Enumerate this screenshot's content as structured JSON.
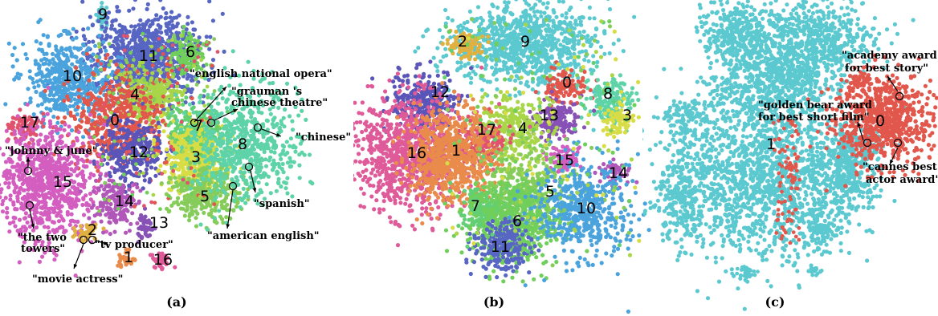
{
  "chart_data": [
    {
      "type": "scatter",
      "panel": "(a)",
      "clusters": [
        {
          "label": "0",
          "color": "#e2574c"
        },
        {
          "label": "1",
          "color": "#e98b4a"
        },
        {
          "label": "2",
          "color": "#e0b040"
        },
        {
          "label": "3",
          "color": "#d8dc45"
        },
        {
          "label": "4",
          "color": "#a8d648"
        },
        {
          "label": "5",
          "color": "#86cc5a"
        },
        {
          "label": "6",
          "color": "#6fcf5a"
        },
        {
          "label": "7",
          "color": "#62cf75"
        },
        {
          "label": "8",
          "color": "#5ed3a8"
        },
        {
          "label": "9",
          "color": "#5bc9cf"
        },
        {
          "label": "10",
          "color": "#4aa3dc"
        },
        {
          "label": "11",
          "color": "#5866c3"
        },
        {
          "label": "12",
          "color": "#5a55b8"
        },
        {
          "label": "13",
          "color": "#8751b6"
        },
        {
          "label": "14",
          "color": "#b057b9"
        },
        {
          "label": "15",
          "color": "#d35ec0"
        },
        {
          "label": "16",
          "color": "#df5a98"
        },
        {
          "label": "17",
          "color": "#e0536d"
        }
      ],
      "annotations": [
        "\"english national opera\"",
        "\"grauman 's chinese theatre\"",
        "\"chinese\"",
        "\"johnny & june\"",
        "\"spanish\"",
        "\"the two towers\"",
        "\"american english\"",
        "\"tv producer\"",
        "\"movie actress\""
      ]
    },
    {
      "type": "scatter",
      "panel": "(b)",
      "clusters": [
        {
          "label": "0",
          "color": "#e2574c"
        },
        {
          "label": "1",
          "color": "#e98b4a"
        },
        {
          "label": "2",
          "color": "#e0b040"
        },
        {
          "label": "3",
          "color": "#d8dc45"
        },
        {
          "label": "4",
          "color": "#a8d648"
        },
        {
          "label": "5",
          "color": "#86cc5a"
        },
        {
          "label": "6",
          "color": "#6fcf5a"
        },
        {
          "label": "7",
          "color": "#62cf75"
        },
        {
          "label": "8",
          "color": "#5ed3a8"
        },
        {
          "label": "9",
          "color": "#5bc9cf"
        },
        {
          "label": "10",
          "color": "#4aa3dc"
        },
        {
          "label": "11",
          "color": "#5866c3"
        },
        {
          "label": "12",
          "color": "#5a55b8"
        },
        {
          "label": "13",
          "color": "#8751b6"
        },
        {
          "label": "14",
          "color": "#b057b9"
        },
        {
          "label": "15",
          "color": "#d35ec0"
        },
        {
          "label": "16",
          "color": "#df5a98"
        },
        {
          "label": "17",
          "color": "#e0536d"
        }
      ],
      "annotations": []
    },
    {
      "type": "scatter",
      "panel": "(c)",
      "clusters": [
        {
          "label": "0",
          "color": "#e2574c"
        },
        {
          "label": "1",
          "color": "#5bc9cf"
        }
      ],
      "annotations": [
        "\"academy award for best story\"",
        "\"golden bear award for best short film\"",
        "\"cannes best actor award\""
      ]
    }
  ],
  "captions": [
    "(a)",
    "(b)",
    "(c)"
  ]
}
